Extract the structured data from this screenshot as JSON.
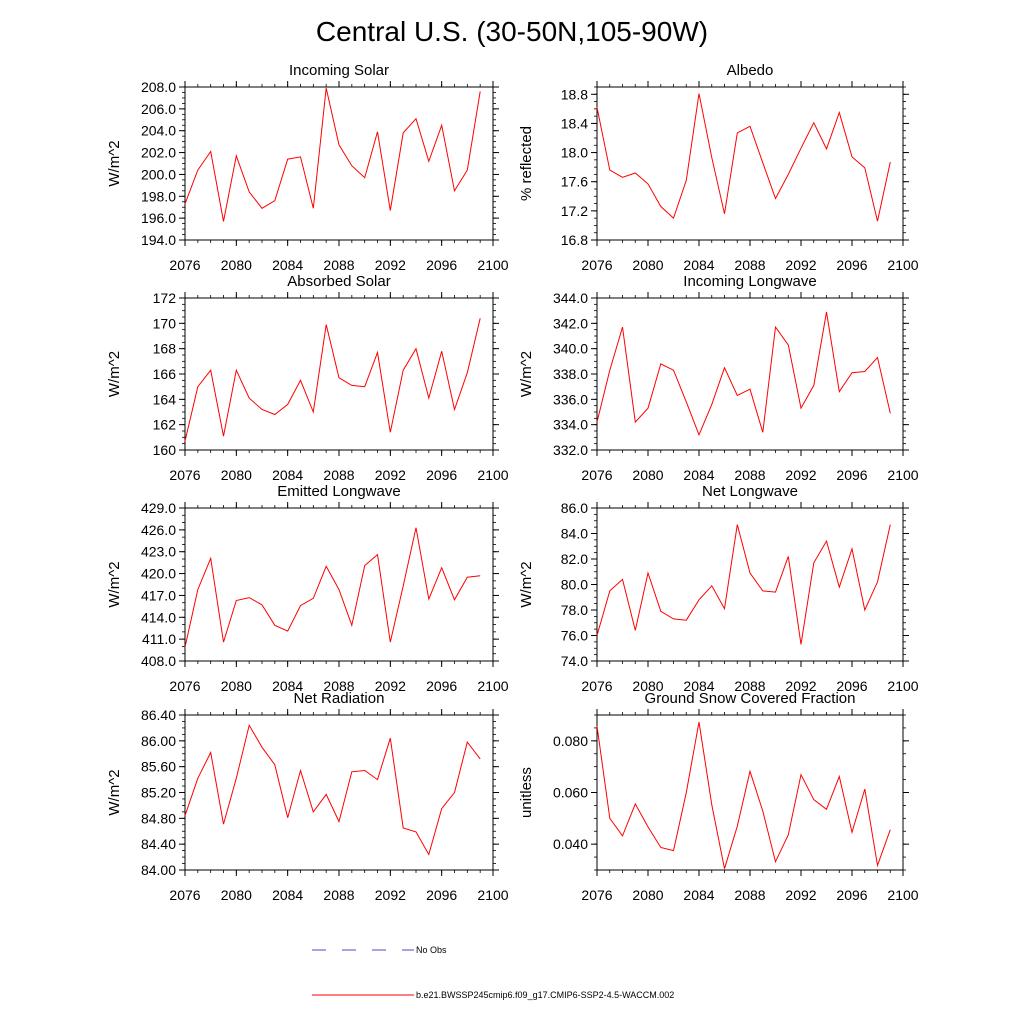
{
  "figure": {
    "title": "Central U.S. (30-50N,105-90W)",
    "background": "#ffffff",
    "series_color": "#ff0000",
    "obs_color": "#4b4bc8"
  },
  "chart_data": [
    {
      "type": "line",
      "title": "Incoming Solar",
      "xlabel": "",
      "ylabel": "W/m^2",
      "xlim": [
        2076,
        2100
      ],
      "ylim": [
        194.0,
        208.0
      ],
      "xticks": [
        2076,
        2080,
        2084,
        2088,
        2092,
        2096,
        2100
      ],
      "xtick_labels": [
        "2076",
        "2080",
        "2084",
        "2088",
        "2092",
        "2096",
        "2100"
      ],
      "yticks": [
        194,
        196,
        198,
        200,
        202,
        204,
        206,
        208
      ],
      "ytick_labels": [
        "194.0",
        "196.0",
        "198.0",
        "200.0",
        "202.0",
        "204.0",
        "206.0",
        "208.0"
      ],
      "yminor": 0.5,
      "x": [
        2076,
        2077,
        2078,
        2079,
        2080,
        2081,
        2082,
        2083,
        2084,
        2085,
        2086,
        2087,
        2088,
        2089,
        2090,
        2091,
        2092,
        2093,
        2094,
        2095,
        2096,
        2097,
        2098,
        2099
      ],
      "y": [
        197.3,
        200.4,
        202.1,
        195.7,
        201.7,
        198.4,
        196.9,
        197.6,
        201.4,
        201.6,
        196.9,
        207.9,
        202.7,
        200.8,
        199.7,
        203.9,
        196.7,
        203.8,
        205.1,
        201.2,
        204.5,
        198.5,
        200.4,
        207.6
      ]
    },
    {
      "type": "line",
      "title": "Albedo",
      "xlabel": "",
      "ylabel": "% reflected",
      "xlim": [
        2076,
        2100
      ],
      "ylim": [
        16.8,
        18.9
      ],
      "xticks": [
        2076,
        2080,
        2084,
        2088,
        2092,
        2096,
        2100
      ],
      "xtick_labels": [
        "2076",
        "2080",
        "2084",
        "2088",
        "2092",
        "2096",
        "2100"
      ],
      "yticks": [
        16.8,
        17.2,
        17.6,
        18.0,
        18.4,
        18.8
      ],
      "ytick_labels": [
        "16.8",
        "17.2",
        "17.6",
        "18.0",
        "18.4",
        "18.8"
      ],
      "yminor": 0.1,
      "x": [
        2076,
        2077,
        2078,
        2079,
        2080,
        2081,
        2082,
        2083,
        2084,
        2085,
        2086,
        2087,
        2088,
        2089,
        2090,
        2091,
        2092,
        2093,
        2094,
        2095,
        2096,
        2097,
        2098,
        2099
      ],
      "y": [
        18.62,
        17.76,
        17.66,
        17.72,
        17.57,
        17.26,
        17.1,
        17.62,
        18.81,
        17.93,
        17.16,
        18.27,
        18.36,
        17.86,
        17.37,
        17.7,
        18.06,
        18.41,
        18.05,
        18.55,
        17.94,
        17.79,
        17.06,
        17.87
      ]
    },
    {
      "type": "line",
      "title": "Absorbed Solar",
      "xlabel": "",
      "ylabel": "W/m^2",
      "xlim": [
        2076,
        2100
      ],
      "ylim": [
        160,
        172
      ],
      "xticks": [
        2076,
        2080,
        2084,
        2088,
        2092,
        2096,
        2100
      ],
      "xtick_labels": [
        "2076",
        "2080",
        "2084",
        "2088",
        "2092",
        "2096",
        "2100"
      ],
      "yticks": [
        160,
        162,
        164,
        166,
        168,
        170,
        172
      ],
      "ytick_labels": [
        "160",
        "162",
        "164",
        "166",
        "168",
        "170",
        "172"
      ],
      "yminor": 0.5,
      "x": [
        2076,
        2077,
        2078,
        2079,
        2080,
        2081,
        2082,
        2083,
        2084,
        2085,
        2086,
        2087,
        2088,
        2089,
        2090,
        2091,
        2092,
        2093,
        2094,
        2095,
        2096,
        2097,
        2098,
        2099
      ],
      "y": [
        160.7,
        165.0,
        166.3,
        161.1,
        166.3,
        164.1,
        163.2,
        162.8,
        163.6,
        165.5,
        163.0,
        169.9,
        165.7,
        165.1,
        165.0,
        167.7,
        161.4,
        166.3,
        168.0,
        164.1,
        167.8,
        163.2,
        166.1,
        170.4
      ]
    },
    {
      "type": "line",
      "title": "Incoming Longwave",
      "xlabel": "",
      "ylabel": "W/m^2",
      "xlim": [
        2076,
        2100
      ],
      "ylim": [
        332.0,
        344.0
      ],
      "xticks": [
        2076,
        2080,
        2084,
        2088,
        2092,
        2096,
        2100
      ],
      "xtick_labels": [
        "2076",
        "2080",
        "2084",
        "2088",
        "2092",
        "2096",
        "2100"
      ],
      "yticks": [
        332,
        334,
        336,
        338,
        340,
        342,
        344
      ],
      "ytick_labels": [
        "332.0",
        "334.0",
        "336.0",
        "338.0",
        "340.0",
        "342.0",
        "344.0"
      ],
      "yminor": 0.5,
      "x": [
        2076,
        2077,
        2078,
        2079,
        2080,
        2081,
        2082,
        2083,
        2084,
        2085,
        2086,
        2087,
        2088,
        2089,
        2090,
        2091,
        2092,
        2093,
        2094,
        2095,
        2096,
        2097,
        2098,
        2099
      ],
      "y": [
        334.2,
        338.3,
        341.7,
        334.2,
        335.3,
        338.8,
        338.3,
        335.8,
        333.2,
        335.6,
        338.5,
        336.3,
        336.8,
        333.4,
        341.7,
        340.3,
        335.3,
        337.1,
        342.9,
        336.6,
        338.1,
        338.2,
        339.3,
        334.9
      ]
    },
    {
      "type": "line",
      "title": "Emitted Longwave",
      "xlabel": "",
      "ylabel": "W/m^2",
      "xlim": [
        2076,
        2100
      ],
      "ylim": [
        408.0,
        429.0
      ],
      "xticks": [
        2076,
        2080,
        2084,
        2088,
        2092,
        2096,
        2100
      ],
      "xtick_labels": [
        "2076",
        "2080",
        "2084",
        "2088",
        "2092",
        "2096",
        "2100"
      ],
      "yticks": [
        408,
        411,
        414,
        417,
        420,
        423,
        426,
        429
      ],
      "ytick_labels": [
        "408.0",
        "411.0",
        "414.0",
        "417.0",
        "420.0",
        "423.0",
        "426.0",
        "429.0"
      ],
      "yminor": 1,
      "x": [
        2076,
        2077,
        2078,
        2079,
        2080,
        2081,
        2082,
        2083,
        2084,
        2085,
        2086,
        2087,
        2088,
        2089,
        2090,
        2091,
        2092,
        2093,
        2094,
        2095,
        2096,
        2097,
        2098,
        2099
      ],
      "y": [
        409.9,
        417.8,
        422.1,
        410.6,
        416.3,
        416.7,
        415.7,
        412.9,
        412.1,
        415.6,
        416.6,
        421.0,
        417.8,
        412.9,
        421.1,
        422.6,
        410.6,
        418.3,
        426.3,
        416.5,
        420.8,
        416.4,
        419.5,
        419.7
      ]
    },
    {
      "type": "line",
      "title": "Net Longwave",
      "xlabel": "",
      "ylabel": "W/m^2",
      "xlim": [
        2076,
        2100
      ],
      "ylim": [
        74.0,
        86.0
      ],
      "xticks": [
        2076,
        2080,
        2084,
        2088,
        2092,
        2096,
        2100
      ],
      "xtick_labels": [
        "2076",
        "2080",
        "2084",
        "2088",
        "2092",
        "2096",
        "2100"
      ],
      "yticks": [
        74,
        76,
        78,
        80,
        82,
        84,
        86
      ],
      "ytick_labels": [
        "74.0",
        "76.0",
        "78.0",
        "80.0",
        "82.0",
        "84.0",
        "86.0"
      ],
      "yminor": 0.5,
      "x": [
        2076,
        2077,
        2078,
        2079,
        2080,
        2081,
        2082,
        2083,
        2084,
        2085,
        2086,
        2087,
        2088,
        2089,
        2090,
        2091,
        2092,
        2093,
        2094,
        2095,
        2096,
        2097,
        2098,
        2099
      ],
      "y": [
        76.0,
        79.5,
        80.4,
        76.4,
        80.9,
        77.9,
        77.3,
        77.2,
        78.8,
        79.9,
        78.1,
        84.7,
        80.9,
        79.5,
        79.4,
        82.2,
        75.3,
        81.7,
        83.4,
        79.8,
        82.8,
        78.0,
        80.2,
        84.7
      ]
    },
    {
      "type": "line",
      "title": "Net Radiation",
      "xlabel": "",
      "ylabel": "W/m^2",
      "xlim": [
        2076,
        2100
      ],
      "ylim": [
        84.0,
        86.4
      ],
      "xticks": [
        2076,
        2080,
        2084,
        2088,
        2092,
        2096,
        2100
      ],
      "xtick_labels": [
        "2076",
        "2080",
        "2084",
        "2088",
        "2092",
        "2096",
        "2100"
      ],
      "yticks": [
        84.0,
        84.4,
        84.8,
        85.2,
        85.6,
        86.0,
        86.4
      ],
      "ytick_labels": [
        "84.00",
        "84.40",
        "84.80",
        "85.20",
        "85.60",
        "86.00",
        "86.40"
      ],
      "yminor": 0.1,
      "x": [
        2076,
        2077,
        2078,
        2079,
        2080,
        2081,
        2082,
        2083,
        2084,
        2085,
        2086,
        2087,
        2088,
        2089,
        2090,
        2091,
        2092,
        2093,
        2094,
        2095,
        2096,
        2097,
        2098,
        2099
      ],
      "y": [
        84.84,
        85.42,
        85.82,
        84.71,
        85.42,
        86.24,
        85.9,
        85.63,
        84.81,
        85.54,
        84.9,
        85.17,
        84.75,
        85.52,
        85.54,
        85.4,
        86.04,
        84.65,
        84.59,
        84.24,
        84.95,
        85.2,
        85.98,
        85.72
      ]
    },
    {
      "type": "line",
      "title": "Ground Snow Covered Fraction",
      "xlabel": "",
      "ylabel": "unitless",
      "xlim": [
        2076,
        2100
      ],
      "ylim": [
        0.03,
        0.09
      ],
      "xticks": [
        2076,
        2080,
        2084,
        2088,
        2092,
        2096,
        2100
      ],
      "xtick_labels": [
        "2076",
        "2080",
        "2084",
        "2088",
        "2092",
        "2096",
        "2100"
      ],
      "yticks": [
        0.04,
        0.06,
        0.08
      ],
      "ytick_labels": [
        "0.040",
        "0.060",
        "0.080"
      ],
      "yminor": 0.005,
      "x": [
        2076,
        2077,
        2078,
        2079,
        2080,
        2081,
        2082,
        2083,
        2084,
        2085,
        2086,
        2087,
        2088,
        2089,
        2090,
        2091,
        2092,
        2093,
        2094,
        2095,
        2096,
        2097,
        2098,
        2099
      ],
      "y": [
        0.0858,
        0.05,
        0.0432,
        0.0556,
        0.0467,
        0.0387,
        0.0375,
        0.06,
        0.0873,
        0.0552,
        0.0305,
        0.047,
        0.0682,
        0.0528,
        0.0332,
        0.0436,
        0.0669,
        0.0572,
        0.0535,
        0.0662,
        0.0446,
        0.0613,
        0.0318,
        0.0456
      ]
    }
  ],
  "legend": {
    "items": [
      {
        "label": "No Obs",
        "style": "dashed",
        "color": "#4b4bc8"
      },
      {
        "label": "b.e21.BWSSP245cmip6.f09_g17.CMIP6-SSP2-4.5-WACCM.002",
        "style": "solid",
        "color": "#ff0000"
      }
    ]
  }
}
